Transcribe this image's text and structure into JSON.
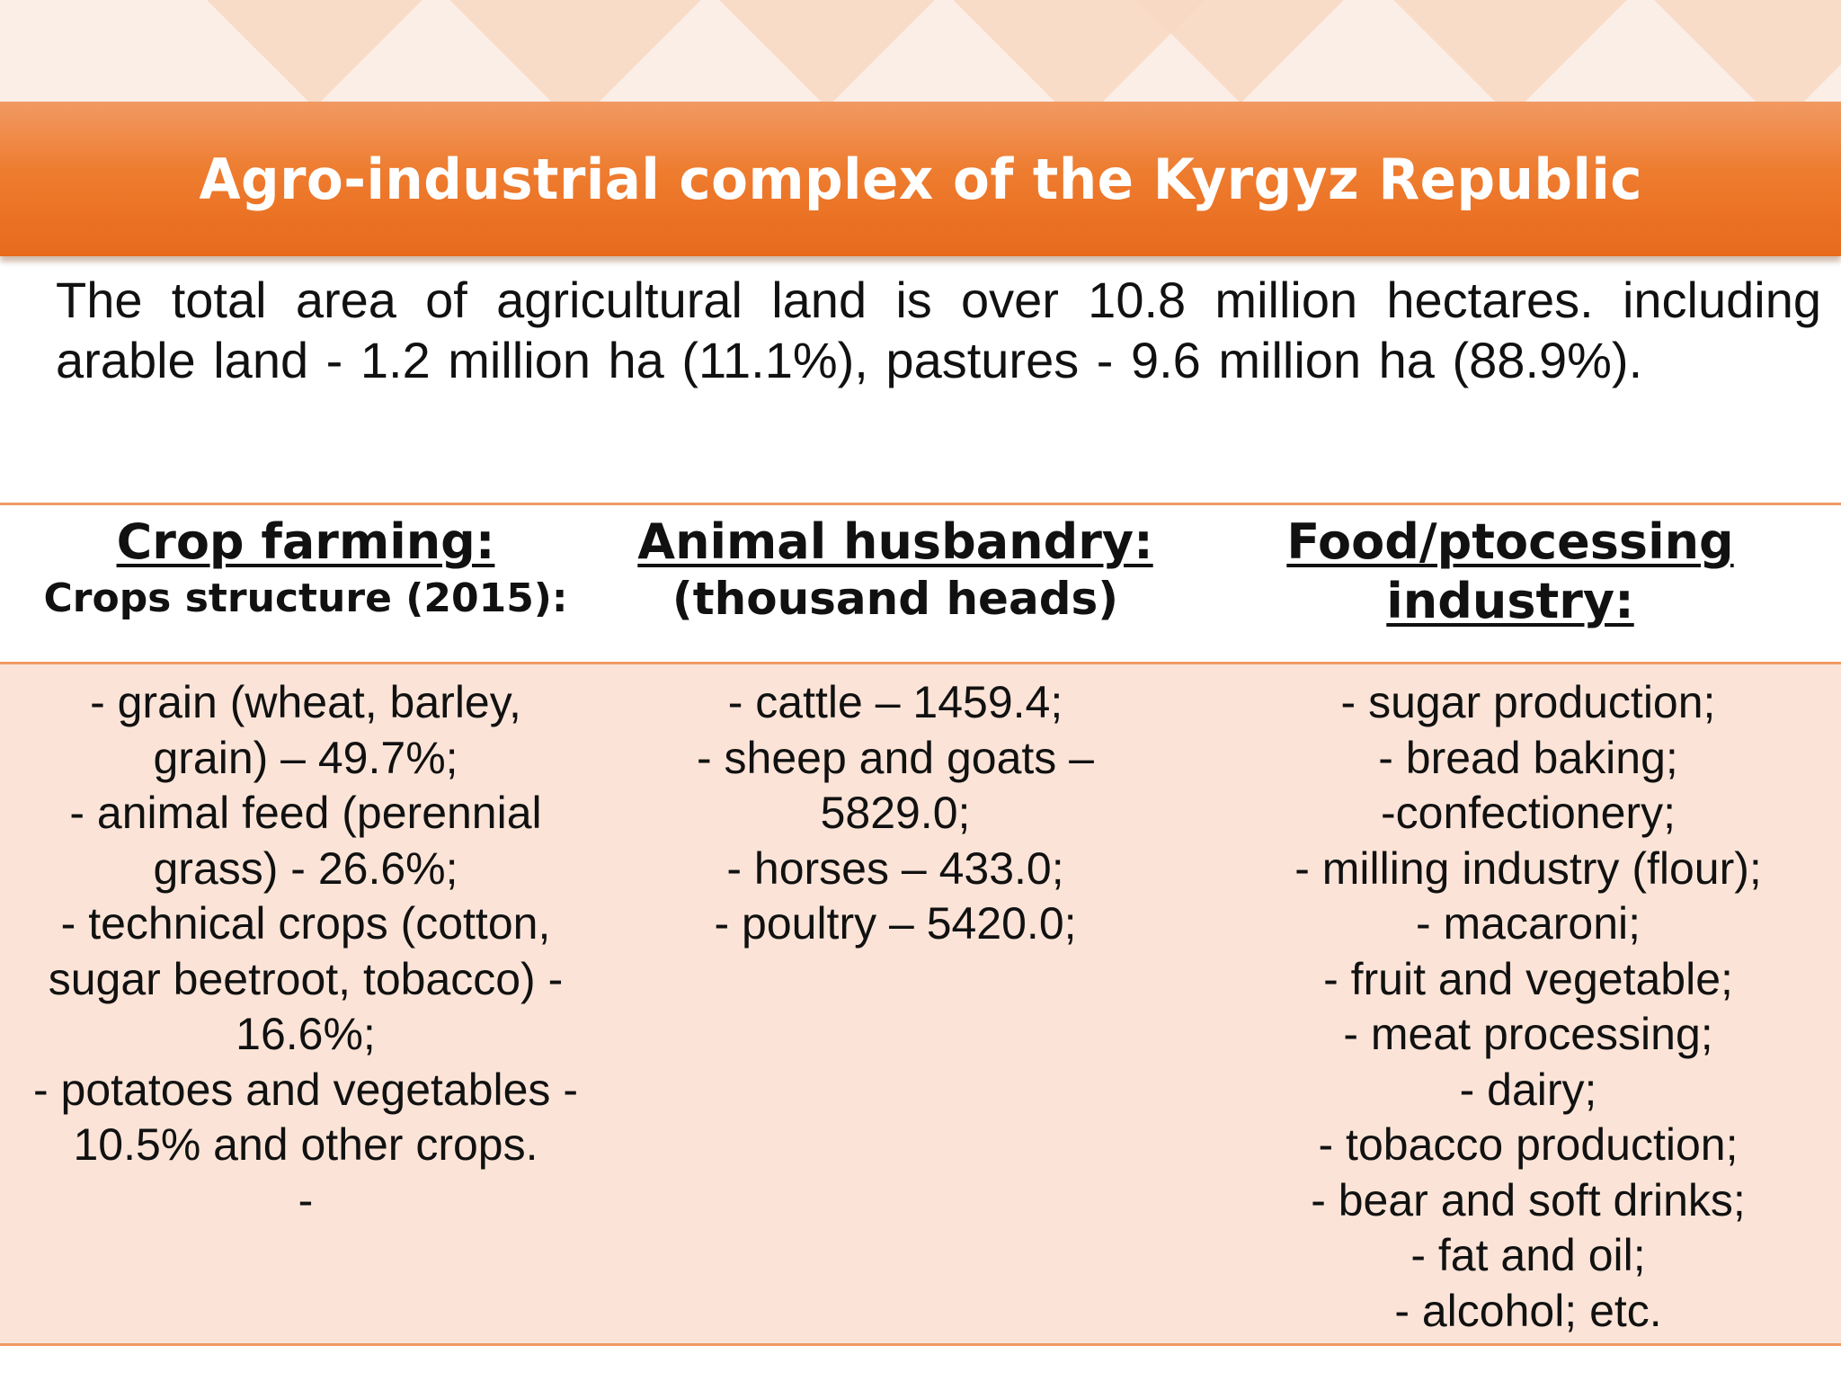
{
  "slide": {
    "title": "Agro-industrial complex of the Kyrgyz Republic",
    "intro_lines": [
      "The total area of agricultural land is over 10.8 million hectares.",
      "including arable land - 1.2 million ha (11.1%), pastures - 9.6 million ha",
      "(88.9%)."
    ]
  },
  "columns": [
    {
      "heading": "Crop farming:",
      "subheading": "Crops structure (2015):",
      "lines": [
        "- grain (wheat, barley,",
        "grain) – 49.7%;",
        "- animal feed (perennial",
        "grass) -  26.6%;",
        "- technical crops (cotton,",
        "sugar beetroot, tobacco) -",
        "16.6%;",
        "- potatoes and vegetables -",
        "10.5% and other crops.",
        "-"
      ]
    },
    {
      "heading": "Animal husbandry:",
      "subheading": "(thousand heads)",
      "lines": [
        "- cattle – 1459.4;",
        "- sheep and goats –",
        "5829.0;",
        "- horses – 433.0;",
        "- poultry – 5420.0;"
      ]
    },
    {
      "heading_lines": [
        "Food/ptocessing",
        "industry:"
      ],
      "lines": [
        "- sugar production;",
        "- bread baking;",
        "-confectionery;",
        "- milling industry (flour);",
        "- macaroni;",
        "- fruit and vegetable;",
        "- meat processing;",
        "- dairy;",
        "- tobacco production;",
        "- bear and soft drinks;",
        "- fat and oil;",
        "- alcohol; etc."
      ]
    }
  ],
  "colors": {
    "title_bar": "#ee7c2f",
    "table_body": "#fbe4d7",
    "rule": "#ef9a62"
  }
}
